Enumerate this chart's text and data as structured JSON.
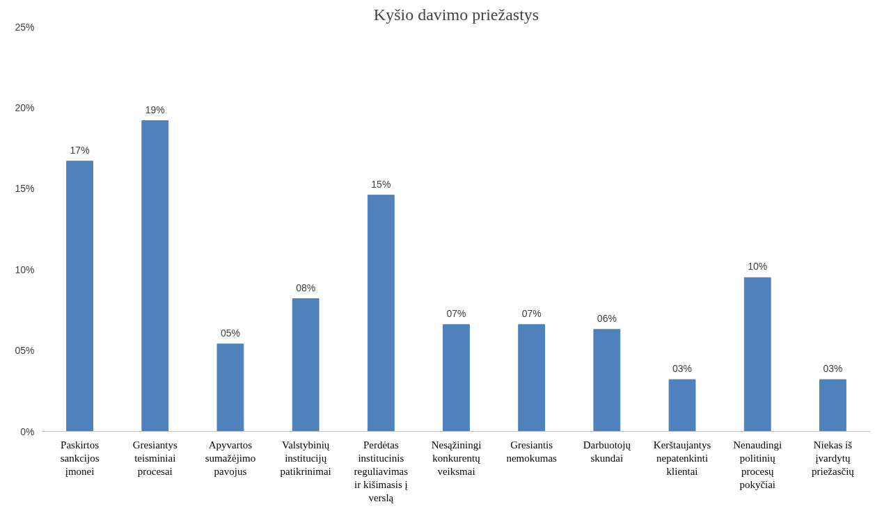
{
  "chart_data": {
    "type": "bar",
    "title": "Kyšio davimo priežastys",
    "categories": [
      "Paskirtos sankcijos įmonei",
      "Gresiantys teisminiai procesai",
      "Apyvartos sumažėjimo pavojus",
      "Valstybinių institucijų patikrinimai",
      "Perdėtas institucinis reguliavimas ir kišimasis į verslą",
      "Nesąžiningi konkurentų veiksmai",
      "Gresiantis nemokumas",
      "Darbuotojų skundai",
      "Kerštaujantys nepatenkinti klientai",
      "Nenaudingi politinių procesų pokyčiai",
      "Niekas iš įvardytų priežasčių"
    ],
    "values": [
      16.7,
      19.2,
      5.4,
      8.2,
      14.6,
      6.6,
      6.6,
      6.3,
      3.2,
      9.5,
      3.2
    ],
    "value_labels": [
      "17%",
      "19%",
      "05%",
      "08%",
      "15%",
      "07%",
      "07%",
      "06%",
      "03%",
      "10%",
      "03%"
    ],
    "color": "#4f81bd",
    "ylim": [
      0,
      25
    ],
    "yticks": [
      {
        "value": 0,
        "label": "0%"
      },
      {
        "value": 5,
        "label": "05%"
      },
      {
        "value": 10,
        "label": "10%"
      },
      {
        "value": 15,
        "label": "15%"
      },
      {
        "value": 20,
        "label": "20%"
      },
      {
        "value": 25,
        "label": "25%"
      }
    ]
  }
}
